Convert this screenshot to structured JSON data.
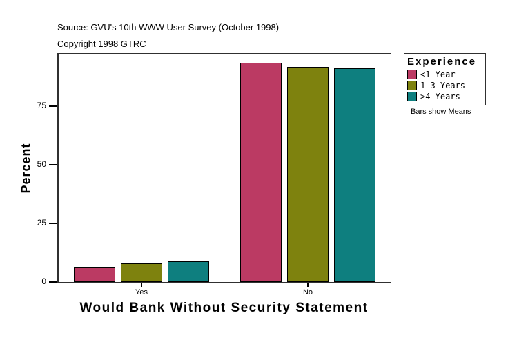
{
  "page": {
    "background": "#ffffff",
    "text_color": "#000000",
    "axis_color": "#303030"
  },
  "header": {
    "source_line": "Source: GVU's 10th WWW User Survey (October 1998)",
    "copyright_line": "Copyright 1998 GTRC"
  },
  "chart_data": {
    "type": "bar",
    "title": "",
    "xlabel": "Would Bank Without Security Statement",
    "ylabel": "Percent",
    "categories": [
      "Yes",
      "No"
    ],
    "series": [
      {
        "name": "<1 Year",
        "color": "#BB3A63",
        "values": [
          6.4,
          93.6
        ]
      },
      {
        "name": "1-3 Years",
        "color": "#7E820E",
        "values": [
          8.1,
          91.9
        ]
      },
      {
        "name": ">4 Years",
        "color": "#0E7F7F",
        "values": [
          8.7,
          91.3
        ]
      }
    ],
    "yticks": [
      0,
      25,
      50,
      75
    ],
    "ylim": [
      0,
      97.5
    ],
    "grid": false,
    "bar_border_color": "#000000",
    "legend_title": "Experience",
    "legend_position": "top-right-outside",
    "note": "Bars show Means"
  }
}
